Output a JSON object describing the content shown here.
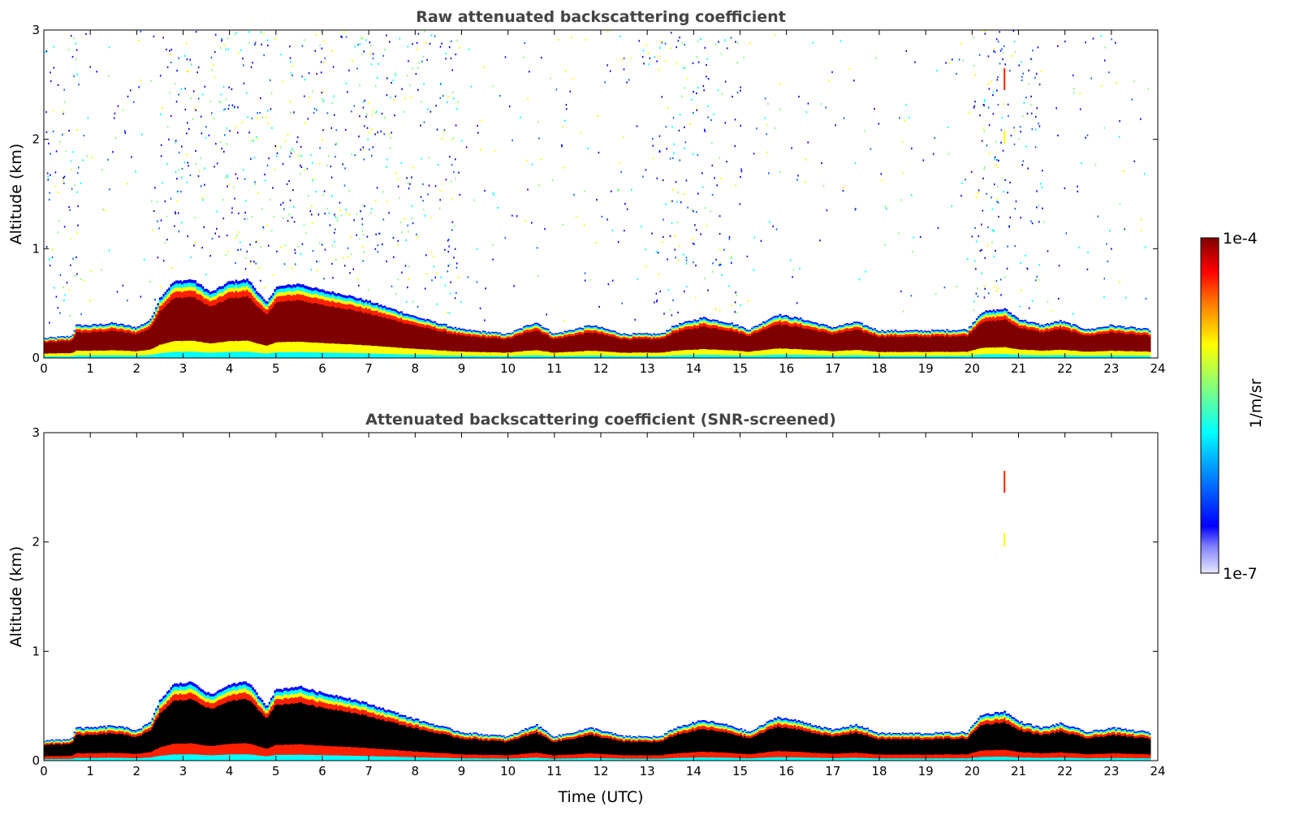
{
  "chart_data": [
    {
      "type": "heatmap",
      "title": "Raw attenuated backscattering coefficient",
      "xlabel": "",
      "ylabel": "Altitude (km)",
      "xlim": [
        0,
        24
      ],
      "ylim": [
        0,
        3
      ],
      "xticks": [
        "0",
        "1",
        "2",
        "3",
        "4",
        "5",
        "6",
        "7",
        "8",
        "9",
        "10",
        "11",
        "12",
        "13",
        "14",
        "15",
        "16",
        "17",
        "18",
        "19",
        "20",
        "21",
        "22",
        "23",
        "24"
      ],
      "yticks": [
        "0",
        "1",
        "2",
        "3"
      ],
      "layer_top_km": [
        [
          0,
          0.18
        ],
        [
          0.6,
          0.2
        ],
        [
          0.7,
          0.3
        ],
        [
          1,
          0.3
        ],
        [
          1.5,
          0.32
        ],
        [
          2,
          0.28
        ],
        [
          2.3,
          0.35
        ],
        [
          2.5,
          0.55
        ],
        [
          2.8,
          0.7
        ],
        [
          3.2,
          0.72
        ],
        [
          3.6,
          0.6
        ],
        [
          4,
          0.7
        ],
        [
          4.4,
          0.72
        ],
        [
          4.8,
          0.5
        ],
        [
          5,
          0.65
        ],
        [
          5.5,
          0.68
        ],
        [
          6,
          0.62
        ],
        [
          6.5,
          0.58
        ],
        [
          7,
          0.52
        ],
        [
          7.5,
          0.45
        ],
        [
          8,
          0.38
        ],
        [
          8.5,
          0.32
        ],
        [
          9,
          0.26
        ],
        [
          10,
          0.22
        ],
        [
          10.6,
          0.33
        ],
        [
          11,
          0.22
        ],
        [
          11.8,
          0.3
        ],
        [
          12.5,
          0.22
        ],
        [
          13.3,
          0.22
        ],
        [
          13.6,
          0.3
        ],
        [
          14.2,
          0.37
        ],
        [
          14.8,
          0.32
        ],
        [
          15.2,
          0.26
        ],
        [
          15.8,
          0.4
        ],
        [
          16.3,
          0.36
        ],
        [
          17,
          0.28
        ],
        [
          17.5,
          0.33
        ],
        [
          18,
          0.25
        ],
        [
          19,
          0.25
        ],
        [
          19.9,
          0.26
        ],
        [
          20.2,
          0.42
        ],
        [
          20.7,
          0.45
        ],
        [
          21,
          0.36
        ],
        [
          21.5,
          0.3
        ],
        [
          21.9,
          0.34
        ],
        [
          22.5,
          0.26
        ],
        [
          23,
          0.3
        ],
        [
          23.8,
          0.26
        ]
      ],
      "colorbar": {
        "min_label": "1e-7",
        "max_label": "1e-4",
        "label": "1/m/sr",
        "scale": "log"
      }
    },
    {
      "type": "heatmap",
      "title": "Attenuated backscattering coefficient (SNR-screened)",
      "xlabel": "Time (UTC)",
      "ylabel": "Altitude (km)",
      "xlim": [
        0,
        24
      ],
      "ylim": [
        0,
        3
      ],
      "xticks": [
        "0",
        "1",
        "2",
        "3",
        "4",
        "5",
        "6",
        "7",
        "8",
        "9",
        "10",
        "11",
        "12",
        "13",
        "14",
        "15",
        "16",
        "17",
        "18",
        "19",
        "20",
        "21",
        "22",
        "23",
        "24"
      ],
      "yticks": [
        "0",
        "1",
        "2",
        "3"
      ],
      "layer_top_km": [
        [
          0,
          0.18
        ],
        [
          0.6,
          0.2
        ],
        [
          0.7,
          0.3
        ],
        [
          1,
          0.3
        ],
        [
          1.5,
          0.32
        ],
        [
          2,
          0.28
        ],
        [
          2.3,
          0.35
        ],
        [
          2.5,
          0.55
        ],
        [
          2.8,
          0.7
        ],
        [
          3.2,
          0.72
        ],
        [
          3.6,
          0.6
        ],
        [
          4,
          0.7
        ],
        [
          4.4,
          0.72
        ],
        [
          4.8,
          0.5
        ],
        [
          5,
          0.65
        ],
        [
          5.5,
          0.68
        ],
        [
          6,
          0.62
        ],
        [
          6.5,
          0.58
        ],
        [
          7,
          0.52
        ],
        [
          7.5,
          0.45
        ],
        [
          8,
          0.38
        ],
        [
          8.5,
          0.32
        ],
        [
          9,
          0.26
        ],
        [
          10,
          0.22
        ],
        [
          10.6,
          0.33
        ],
        [
          11,
          0.22
        ],
        [
          11.8,
          0.3
        ],
        [
          12.5,
          0.22
        ],
        [
          13.3,
          0.22
        ],
        [
          13.6,
          0.3
        ],
        [
          14.2,
          0.37
        ],
        [
          14.8,
          0.32
        ],
        [
          15.2,
          0.26
        ],
        [
          15.8,
          0.4
        ],
        [
          16.3,
          0.36
        ],
        [
          17,
          0.28
        ],
        [
          17.5,
          0.33
        ],
        [
          18,
          0.25
        ],
        [
          19,
          0.25
        ],
        [
          19.9,
          0.26
        ],
        [
          20.2,
          0.42
        ],
        [
          20.7,
          0.45
        ],
        [
          21,
          0.36
        ],
        [
          21.5,
          0.3
        ],
        [
          21.9,
          0.34
        ],
        [
          22.5,
          0.26
        ],
        [
          23,
          0.3
        ],
        [
          23.8,
          0.26
        ]
      ],
      "colorbar": {
        "min_label": "1e-7",
        "max_label": "1e-4",
        "label": "1/m/sr",
        "scale": "log"
      }
    }
  ],
  "colors": {
    "max": "#7f0000",
    "high": "#ff2000",
    "mid": "#ffff00",
    "low": "#00ffff",
    "min": "#0000ff",
    "floor": "#e8e8ff",
    "title": "#444444"
  }
}
